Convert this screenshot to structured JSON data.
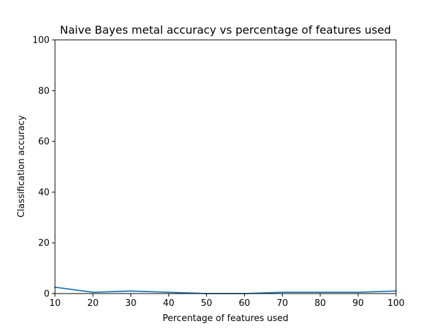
{
  "chart_data": {
    "type": "line",
    "title": "Naive Bayes metal accuracy vs percentage of features used",
    "xlabel": "Percentage of features used",
    "ylabel": "Classification accuracy",
    "xlim": [
      10,
      100
    ],
    "ylim": [
      0,
      100
    ],
    "xticks": [
      10,
      20,
      30,
      40,
      50,
      60,
      70,
      80,
      90,
      100
    ],
    "yticks": [
      0,
      20,
      40,
      60,
      80,
      100
    ],
    "grid": false,
    "series": [
      {
        "x": [
          10,
          20,
          30,
          40,
          50,
          60,
          70,
          80,
          90,
          100
        ],
        "y": [
          2.5,
          0.5,
          1.0,
          0.5,
          0.0,
          0.0,
          0.5,
          0.5,
          0.5,
          1.0
        ],
        "color": "#1f77b4"
      }
    ]
  }
}
